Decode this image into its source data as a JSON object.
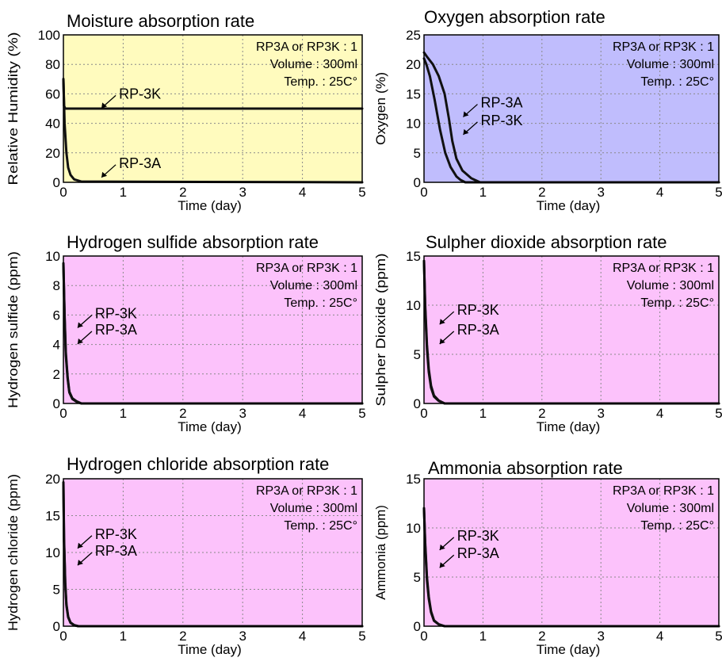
{
  "chart_data": [
    {
      "type": "line",
      "title": "Moisture absorption rate",
      "xlabel": "Time (day)",
      "ylabel": "Relative Humidity (%)",
      "x_ticks": [
        "0",
        "1",
        "2",
        "3",
        "4",
        "5"
      ],
      "y_ticks": [
        "0",
        "20",
        "40",
        "60",
        "80",
        "100"
      ],
      "xlim": [
        0,
        5
      ],
      "ylim": [
        0,
        100
      ],
      "grid": true,
      "background": "#fffbbe",
      "info": [
        "RP3A or RP3K : 1",
        "Volume : 300ml",
        "Temp. : 25C°"
      ],
      "annotations": [
        {
          "text": "RP-3K",
          "x": 0.85,
          "y": 60
        },
        {
          "text": "RP-3A",
          "x": 0.85,
          "y": 13
        }
      ],
      "series": [
        {
          "name": "RP-3K",
          "x": [
            0,
            0.01,
            0.03,
            0.06,
            5
          ],
          "y": [
            70,
            52,
            50,
            50,
            50
          ]
        },
        {
          "name": "RP-3A",
          "x": [
            0,
            0.02,
            0.05,
            0.08,
            0.12,
            0.18,
            0.3,
            5
          ],
          "y": [
            70,
            40,
            20,
            10,
            5,
            2,
            0.5,
            0
          ]
        }
      ]
    },
    {
      "type": "line",
      "title": "Oxygen absorption rate",
      "xlabel": "Time (day)",
      "ylabel": "Oxygen (%)",
      "x_ticks": [
        "0",
        "1",
        "2",
        "3",
        "4",
        "5"
      ],
      "y_ticks": [
        "0",
        "5",
        "10",
        "15",
        "20",
        "25"
      ],
      "xlim": [
        0,
        5
      ],
      "ylim": [
        0,
        25
      ],
      "grid": true,
      "background": "#c0bdfd",
      "info": [
        "RP3A or RP3K : 1",
        "Volume : 300ml",
        "Temp. : 25C°"
      ],
      "annotations": [
        {
          "text": "RP-3A",
          "x": 0.88,
          "y": 13.5
        },
        {
          "text": "RP-3K",
          "x": 0.88,
          "y": 10.5
        }
      ],
      "series": [
        {
          "name": "RP-3A",
          "x": [
            0,
            0.04,
            0.1,
            0.18,
            0.27,
            0.36,
            0.45,
            0.55,
            0.62,
            0.7,
            5
          ],
          "y": [
            21,
            20,
            18,
            14,
            9,
            5,
            2.6,
            1,
            0.4,
            0,
            0
          ]
        },
        {
          "name": "RP-3K",
          "x": [
            0,
            0.05,
            0.15,
            0.25,
            0.35,
            0.42,
            0.48,
            0.55,
            0.65,
            0.8,
            0.95,
            5
          ],
          "y": [
            22,
            21.3,
            20,
            18,
            15,
            11,
            7,
            4,
            2,
            0.7,
            0,
            0
          ]
        }
      ]
    },
    {
      "type": "line",
      "title": "Hydrogen sulfide absorption rate",
      "xlabel": "Time (day)",
      "ylabel": "Hydrogen sulfide (ppm)",
      "x_ticks": [
        "0",
        "1",
        "2",
        "3",
        "4",
        "5"
      ],
      "y_ticks": [
        "0",
        "2",
        "4",
        "6",
        "8",
        "10"
      ],
      "xlim": [
        0,
        5
      ],
      "ylim": [
        0,
        10
      ],
      "grid": true,
      "background": "#fcc2fb",
      "info": [
        "RP3A or RP3K : 1",
        "Volume : 300ml",
        "Temp. : 25C°"
      ],
      "annotations": [
        {
          "text": "RP-3K",
          "x": 0.45,
          "y": 6.1
        },
        {
          "text": "RP-3A",
          "x": 0.45,
          "y": 5.0
        }
      ],
      "series": [
        {
          "name": "RP-3K",
          "x": [
            0,
            0.02,
            0.04,
            0.07,
            0.1,
            0.15,
            0.22,
            0.3,
            5
          ],
          "y": [
            9.5,
            6,
            3.5,
            1.8,
            0.8,
            0.35,
            0.15,
            0,
            0
          ]
        },
        {
          "name": "RP-3A",
          "x": [
            0,
            0.02,
            0.04,
            0.07,
            0.1,
            0.15,
            0.22,
            0.3,
            5
          ],
          "y": [
            9.5,
            5.8,
            3.3,
            1.7,
            0.75,
            0.3,
            0.12,
            0,
            0
          ]
        }
      ]
    },
    {
      "type": "line",
      "title": "Sulpher dioxide absorption rate",
      "xlabel": "Time (day)",
      "ylabel": "Sulpher Dioxide (ppm)",
      "x_ticks": [
        "0",
        "1",
        "2",
        "3",
        "4",
        "5"
      ],
      "y_ticks": [
        "0",
        "5",
        "10",
        "15"
      ],
      "xlim": [
        0,
        5
      ],
      "ylim": [
        0,
        15
      ],
      "grid": true,
      "background": "#fcc2fb",
      "info": [
        "RP3A or RP3K : 1",
        "Volume : 300ml",
        "Temp. : 25C°"
      ],
      "annotations": [
        {
          "text": "RP-3K",
          "x": 0.48,
          "y": 9.5
        },
        {
          "text": "RP-3A",
          "x": 0.48,
          "y": 7.5
        }
      ],
      "series": [
        {
          "name": "RP-3K",
          "x": [
            0,
            0.02,
            0.05,
            0.08,
            0.12,
            0.17,
            0.25,
            0.35,
            5
          ],
          "y": [
            14.5,
            10,
            6,
            3.5,
            1.8,
            0.8,
            0.3,
            0,
            0
          ]
        },
        {
          "name": "RP-3A",
          "x": [
            0,
            0.02,
            0.05,
            0.08,
            0.12,
            0.17,
            0.25,
            0.35,
            5
          ],
          "y": [
            14.5,
            9.6,
            5.6,
            3.2,
            1.6,
            0.7,
            0.25,
            0,
            0
          ]
        }
      ]
    },
    {
      "type": "line",
      "title": "Hydrogen chloride absorption rate",
      "xlabel": "Time (day)",
      "ylabel": "Hydrogen chloride (ppm)",
      "x_ticks": [
        "0",
        "1",
        "2",
        "3",
        "4",
        "5"
      ],
      "y_ticks": [
        "0",
        "5",
        "10",
        "15",
        "20"
      ],
      "xlim": [
        0,
        5
      ],
      "ylim": [
        0,
        20
      ],
      "grid": true,
      "background": "#fcc2fb",
      "info": [
        "RP3A or RP3K : 1",
        "Volume : 300ml",
        "Temp. : 25C°"
      ],
      "annotations": [
        {
          "text": "RP-3K",
          "x": 0.45,
          "y": 12.5
        },
        {
          "text": "RP-3A",
          "x": 0.45,
          "y": 10.2
        }
      ],
      "series": [
        {
          "name": "RP-3K",
          "x": [
            0,
            0.01,
            0.03,
            0.05,
            0.08,
            0.12,
            0.18,
            0.25,
            5
          ],
          "y": [
            19.5,
            12,
            6,
            3,
            1.3,
            0.5,
            0.15,
            0,
            0
          ]
        },
        {
          "name": "RP-3A",
          "x": [
            0,
            0.01,
            0.03,
            0.05,
            0.08,
            0.12,
            0.18,
            0.25,
            5
          ],
          "y": [
            19.5,
            11.5,
            5.7,
            2.8,
            1.2,
            0.45,
            0.12,
            0,
            0
          ]
        }
      ]
    },
    {
      "type": "line",
      "title": "Ammonia absorption rate",
      "xlabel": "Time (day)",
      "ylabel": "Ammonia (ppm)",
      "x_ticks": [
        "0",
        "1",
        "2",
        "3",
        "4",
        "5"
      ],
      "y_ticks": [
        "0",
        "5",
        "10",
        "15"
      ],
      "xlim": [
        0,
        5
      ],
      "ylim": [
        0,
        15
      ],
      "grid": true,
      "background": "#fcc2fb",
      "info": [
        "RP3A or RP3K : 1",
        "Volume : 300ml",
        "Temp. : 25C°"
      ],
      "annotations": [
        {
          "text": "RP-3K",
          "x": 0.48,
          "y": 9.2
        },
        {
          "text": "RP-3A",
          "x": 0.48,
          "y": 7.4
        }
      ],
      "series": [
        {
          "name": "RP-3K",
          "x": [
            0,
            0.02,
            0.05,
            0.08,
            0.12,
            0.17,
            0.25,
            0.35,
            5
          ],
          "y": [
            12,
            8.5,
            5,
            3,
            1.5,
            0.6,
            0.2,
            0,
            0
          ]
        },
        {
          "name": "RP-3A",
          "x": [
            0,
            0.02,
            0.05,
            0.08,
            0.12,
            0.17,
            0.25,
            0.35,
            5
          ],
          "y": [
            12,
            8.2,
            4.7,
            2.8,
            1.4,
            0.55,
            0.18,
            0,
            0
          ]
        }
      ]
    }
  ]
}
